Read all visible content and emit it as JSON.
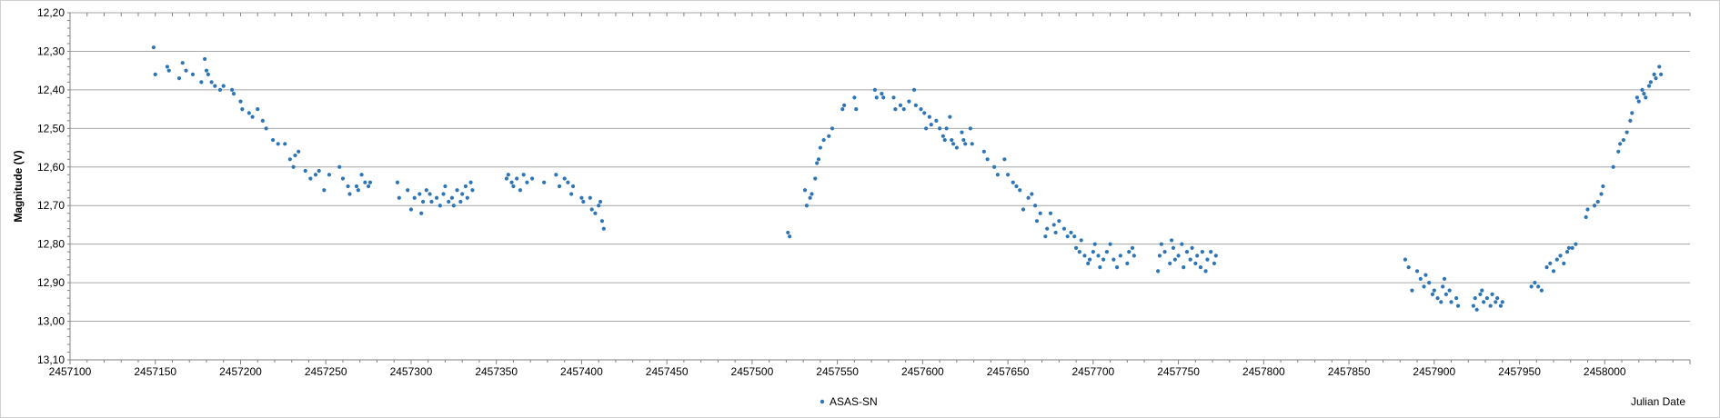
{
  "chart_data": {
    "type": "scatter",
    "title": "",
    "xlabel": "Julian Date",
    "ylabel": "Magnitude (V)",
    "xlim": [
      2457100,
      2458050
    ],
    "ylim": [
      12.2,
      13.1
    ],
    "y_inverted": true,
    "grid": "horizontal",
    "legend_placement": "bottom",
    "x_ticks": [
      "2457100",
      "2457150",
      "2457200",
      "2457250",
      "2457300",
      "2457350",
      "2457400",
      "2457450",
      "2457500",
      "2457550",
      "2457600",
      "2457650",
      "2457700",
      "2457750",
      "2457800",
      "2457850",
      "2457900",
      "2457950",
      "2458000"
    ],
    "y_ticks": [
      "12,20",
      "12,30",
      "12,40",
      "12,50",
      "12,60",
      "12,70",
      "12,80",
      "12,90",
      "13,00",
      "13,10"
    ],
    "series": [
      {
        "name": "ASAS-SN",
        "color": "#2e75b6",
        "points": [
          [
            2457149,
            12.29
          ],
          [
            2457150,
            12.36
          ],
          [
            2457157,
            12.34
          ],
          [
            2457158,
            12.35
          ],
          [
            2457164,
            12.37
          ],
          [
            2457166,
            12.33
          ],
          [
            2457168,
            12.35
          ],
          [
            2457172,
            12.36
          ],
          [
            2457177,
            12.38
          ],
          [
            2457179,
            12.32
          ],
          [
            2457180,
            12.35
          ],
          [
            2457181,
            12.36
          ],
          [
            2457183,
            12.38
          ],
          [
            2457185,
            12.39
          ],
          [
            2457188,
            12.4
          ],
          [
            2457190,
            12.39
          ],
          [
            2457195,
            12.4
          ],
          [
            2457196,
            12.41
          ],
          [
            2457200,
            12.43
          ],
          [
            2457201,
            12.45
          ],
          [
            2457205,
            12.46
          ],
          [
            2457207,
            12.47
          ],
          [
            2457210,
            12.45
          ],
          [
            2457213,
            12.48
          ],
          [
            2457215,
            12.5
          ],
          [
            2457219,
            12.53
          ],
          [
            2457222,
            12.54
          ],
          [
            2457226,
            12.54
          ],
          [
            2457229,
            12.58
          ],
          [
            2457231,
            12.6
          ],
          [
            2457232,
            12.57
          ],
          [
            2457234,
            12.56
          ],
          [
            2457238,
            12.61
          ],
          [
            2457241,
            12.63
          ],
          [
            2457244,
            12.62
          ],
          [
            2457246,
            12.61
          ],
          [
            2457249,
            12.66
          ],
          [
            2457252,
            12.62
          ],
          [
            2457258,
            12.6
          ],
          [
            2457260,
            12.63
          ],
          [
            2457263,
            12.65
          ],
          [
            2457264,
            12.67
          ],
          [
            2457268,
            12.65
          ],
          [
            2457269,
            12.66
          ],
          [
            2457271,
            12.62
          ],
          [
            2457273,
            12.64
          ],
          [
            2457275,
            12.65
          ],
          [
            2457276,
            12.64
          ],
          [
            2457292,
            12.64
          ],
          [
            2457293,
            12.68
          ],
          [
            2457298,
            12.66
          ],
          [
            2457300,
            12.71
          ],
          [
            2457302,
            12.68
          ],
          [
            2457305,
            12.67
          ],
          [
            2457306,
            12.72
          ],
          [
            2457307,
            12.69
          ],
          [
            2457309,
            12.66
          ],
          [
            2457311,
            12.67
          ],
          [
            2457312,
            12.69
          ],
          [
            2457315,
            12.68
          ],
          [
            2457317,
            12.7
          ],
          [
            2457319,
            12.67
          ],
          [
            2457320,
            12.65
          ],
          [
            2457322,
            12.69
          ],
          [
            2457324,
            12.68
          ],
          [
            2457325,
            12.7
          ],
          [
            2457327,
            12.66
          ],
          [
            2457329,
            12.69
          ],
          [
            2457330,
            12.67
          ],
          [
            2457332,
            12.65
          ],
          [
            2457333,
            12.68
          ],
          [
            2457335,
            12.64
          ],
          [
            2457336,
            12.66
          ],
          [
            2457356,
            12.63
          ],
          [
            2457357,
            12.62
          ],
          [
            2457359,
            12.64
          ],
          [
            2457360,
            12.65
          ],
          [
            2457362,
            12.63
          ],
          [
            2457364,
            12.66
          ],
          [
            2457366,
            12.62
          ],
          [
            2457368,
            12.64
          ],
          [
            2457371,
            12.63
          ],
          [
            2457378,
            12.64
          ],
          [
            2457385,
            12.62
          ],
          [
            2457387,
            12.65
          ],
          [
            2457390,
            12.63
          ],
          [
            2457392,
            12.64
          ],
          [
            2457394,
            12.67
          ],
          [
            2457395,
            12.65
          ],
          [
            2457400,
            12.68
          ],
          [
            2457401,
            12.69
          ],
          [
            2457405,
            12.68
          ],
          [
            2457406,
            12.71
          ],
          [
            2457408,
            12.72
          ],
          [
            2457410,
            12.7
          ],
          [
            2457411,
            12.69
          ],
          [
            2457412,
            12.74
          ],
          [
            2457413,
            12.76
          ],
          [
            2457521,
            12.77
          ],
          [
            2457522,
            12.78
          ],
          [
            2457531,
            12.66
          ],
          [
            2457532,
            12.7
          ],
          [
            2457534,
            12.68
          ],
          [
            2457535,
            12.67
          ],
          [
            2457537,
            12.63
          ],
          [
            2457538,
            12.59
          ],
          [
            2457539,
            12.58
          ],
          [
            2457540,
            12.55
          ],
          [
            2457542,
            12.53
          ],
          [
            2457545,
            12.52
          ],
          [
            2457547,
            12.5
          ],
          [
            2457553,
            12.45
          ],
          [
            2457554,
            12.44
          ],
          [
            2457560,
            12.42
          ],
          [
            2457561,
            12.45
          ],
          [
            2457572,
            12.4
          ],
          [
            2457573,
            12.42
          ],
          [
            2457576,
            12.41
          ],
          [
            2457577,
            12.42
          ],
          [
            2457583,
            12.42
          ],
          [
            2457584,
            12.45
          ],
          [
            2457587,
            12.44
          ],
          [
            2457589,
            12.45
          ],
          [
            2457592,
            12.43
          ],
          [
            2457595,
            12.4
          ],
          [
            2457596,
            12.44
          ],
          [
            2457599,
            12.45
          ],
          [
            2457601,
            12.46
          ],
          [
            2457602,
            12.5
          ],
          [
            2457604,
            12.47
          ],
          [
            2457605,
            12.49
          ],
          [
            2457608,
            12.48
          ],
          [
            2457610,
            12.5
          ],
          [
            2457612,
            12.52
          ],
          [
            2457613,
            12.53
          ],
          [
            2457614,
            12.5
          ],
          [
            2457616,
            12.47
          ],
          [
            2457617,
            12.53
          ],
          [
            2457618,
            12.54
          ],
          [
            2457620,
            12.55
          ],
          [
            2457623,
            12.51
          ],
          [
            2457624,
            12.53
          ],
          [
            2457625,
            12.54
          ],
          [
            2457628,
            12.5
          ],
          [
            2457629,
            12.54
          ],
          [
            2457636,
            12.56
          ],
          [
            2457638,
            12.58
          ],
          [
            2457642,
            12.6
          ],
          [
            2457644,
            12.62
          ],
          [
            2457648,
            12.58
          ],
          [
            2457650,
            12.62
          ],
          [
            2457653,
            12.64
          ],
          [
            2457655,
            12.65
          ],
          [
            2457657,
            12.66
          ],
          [
            2457659,
            12.71
          ],
          [
            2457662,
            12.68
          ],
          [
            2457664,
            12.67
          ],
          [
            2457666,
            12.7
          ],
          [
            2457667,
            12.74
          ],
          [
            2457669,
            12.72
          ],
          [
            2457672,
            12.78
          ],
          [
            2457673,
            12.76
          ],
          [
            2457675,
            12.72
          ],
          [
            2457677,
            12.75
          ],
          [
            2457678,
            12.77
          ],
          [
            2457680,
            12.74
          ],
          [
            2457683,
            12.76
          ],
          [
            2457685,
            12.78
          ],
          [
            2457687,
            12.77
          ],
          [
            2457689,
            12.78
          ],
          [
            2457690,
            12.81
          ],
          [
            2457692,
            12.82
          ],
          [
            2457693,
            12.79
          ],
          [
            2457695,
            12.83
          ],
          [
            2457697,
            12.85
          ],
          [
            2457698,
            12.84
          ],
          [
            2457700,
            12.82
          ],
          [
            2457701,
            12.8
          ],
          [
            2457703,
            12.83
          ],
          [
            2457704,
            12.86
          ],
          [
            2457706,
            12.84
          ],
          [
            2457708,
            12.82
          ],
          [
            2457710,
            12.8
          ],
          [
            2457712,
            12.84
          ],
          [
            2457714,
            12.86
          ],
          [
            2457716,
            12.83
          ],
          [
            2457720,
            12.85
          ],
          [
            2457721,
            12.82
          ],
          [
            2457723,
            12.81
          ],
          [
            2457724,
            12.83
          ],
          [
            2457738,
            12.87
          ],
          [
            2457739,
            12.83
          ],
          [
            2457740,
            12.8
          ],
          [
            2457742,
            12.82
          ],
          [
            2457745,
            12.85
          ],
          [
            2457746,
            12.79
          ],
          [
            2457747,
            12.81
          ],
          [
            2457748,
            12.84
          ],
          [
            2457750,
            12.83
          ],
          [
            2457752,
            12.8
          ],
          [
            2457753,
            12.86
          ],
          [
            2457755,
            12.82
          ],
          [
            2457757,
            12.84
          ],
          [
            2457758,
            12.81
          ],
          [
            2457760,
            12.85
          ],
          [
            2457761,
            12.83
          ],
          [
            2457763,
            12.86
          ],
          [
            2457764,
            12.82
          ],
          [
            2457766,
            12.87
          ],
          [
            2457767,
            12.84
          ],
          [
            2457769,
            12.82
          ],
          [
            2457771,
            12.85
          ],
          [
            2457772,
            12.83
          ],
          [
            2457883,
            12.84
          ],
          [
            2457885,
            12.86
          ],
          [
            2457887,
            12.92
          ],
          [
            2457890,
            12.87
          ],
          [
            2457892,
            12.89
          ],
          [
            2457894,
            12.91
          ],
          [
            2457895,
            12.88
          ],
          [
            2457897,
            12.9
          ],
          [
            2457899,
            12.93
          ],
          [
            2457900,
            12.92
          ],
          [
            2457902,
            12.94
          ],
          [
            2457904,
            12.95
          ],
          [
            2457905,
            12.91
          ],
          [
            2457906,
            12.89
          ],
          [
            2457907,
            12.93
          ],
          [
            2457909,
            12.92
          ],
          [
            2457910,
            12.95
          ],
          [
            2457913,
            12.94
          ],
          [
            2457914,
            12.96
          ],
          [
            2457923,
            12.96
          ],
          [
            2457924,
            12.94
          ],
          [
            2457925,
            12.97
          ],
          [
            2457927,
            12.93
          ],
          [
            2457928,
            12.92
          ],
          [
            2457929,
            12.95
          ],
          [
            2457931,
            12.94
          ],
          [
            2457933,
            12.96
          ],
          [
            2457934,
            12.93
          ],
          [
            2457936,
            12.95
          ],
          [
            2457937,
            12.94
          ],
          [
            2457939,
            12.96
          ],
          [
            2457940,
            12.95
          ],
          [
            2457957,
            12.91
          ],
          [
            2457959,
            12.9
          ],
          [
            2457961,
            12.91
          ],
          [
            2457963,
            12.92
          ],
          [
            2457966,
            12.86
          ],
          [
            2457968,
            12.85
          ],
          [
            2457970,
            12.87
          ],
          [
            2457972,
            12.84
          ],
          [
            2457974,
            12.83
          ],
          [
            2457976,
            12.85
          ],
          [
            2457978,
            12.82
          ],
          [
            2457979,
            12.81
          ],
          [
            2457981,
            12.81
          ],
          [
            2457983,
            12.8
          ],
          [
            2457989,
            12.73
          ],
          [
            2457990,
            12.71
          ],
          [
            2457994,
            12.7
          ],
          [
            2457996,
            12.69
          ],
          [
            2457998,
            12.67
          ],
          [
            2457999,
            12.65
          ],
          [
            2458005,
            12.6
          ],
          [
            2458008,
            12.56
          ],
          [
            2458009,
            12.54
          ],
          [
            2458011,
            12.53
          ],
          [
            2458013,
            12.51
          ],
          [
            2458015,
            12.48
          ],
          [
            2458016,
            12.46
          ],
          [
            2458019,
            12.42
          ],
          [
            2458020,
            12.43
          ],
          [
            2458022,
            12.4
          ],
          [
            2458023,
            12.41
          ],
          [
            2458024,
            12.42
          ],
          [
            2458026,
            12.39
          ],
          [
            2458027,
            12.38
          ],
          [
            2458029,
            12.36
          ],
          [
            2458030,
            12.37
          ],
          [
            2458032,
            12.34
          ],
          [
            2458033,
            12.36
          ]
        ]
      }
    ]
  }
}
